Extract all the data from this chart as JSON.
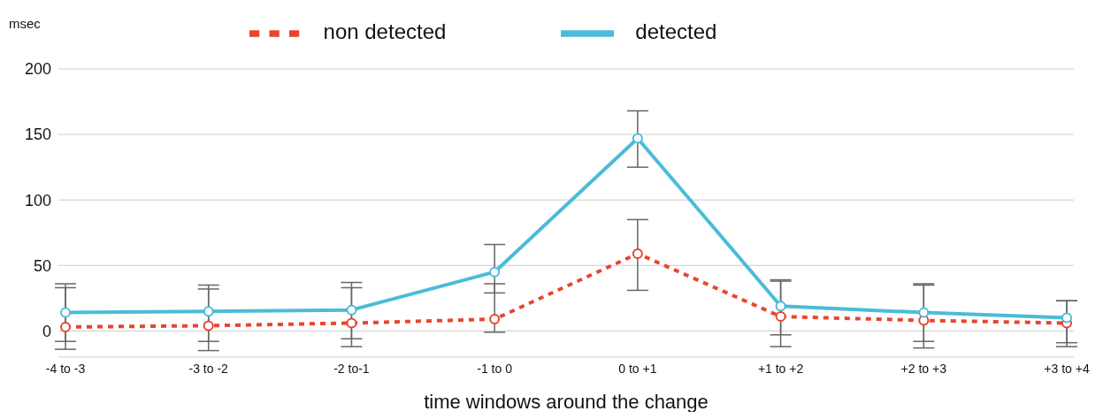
{
  "chart_data": {
    "type": "line",
    "ylabel": "msec",
    "xlabel": "time windows around the change",
    "categories": [
      "-4 to -3",
      "-3 to -2",
      "-2 to-1",
      "-1 to 0",
      "0 to +1",
      "+1 to +2",
      "+2 to +3",
      "+3 to +4"
    ],
    "series": [
      {
        "name": "non detected",
        "color": "#e8452f",
        "line_style": "dotted",
        "values": [
          3,
          4,
          6,
          9,
          59,
          11,
          8,
          6
        ],
        "errors": [
          [
            -14,
            33
          ],
          [
            -15,
            32
          ],
          [
            -12,
            33
          ],
          [
            -1,
            36
          ],
          [
            31,
            85
          ],
          [
            -12,
            38
          ],
          [
            -13,
            35
          ],
          [
            -12,
            23
          ]
        ]
      },
      {
        "name": "detected",
        "color": "#4bbcd8",
        "line_style": "solid",
        "values": [
          14,
          15,
          16,
          45,
          147,
          19,
          14,
          10
        ],
        "errors": [
          [
            -8,
            36
          ],
          [
            -8,
            35
          ],
          [
            -6,
            37
          ],
          [
            29,
            66
          ],
          [
            125,
            168
          ],
          [
            -3,
            39
          ],
          [
            -8,
            36
          ],
          [
            -9,
            23
          ]
        ]
      }
    ],
    "ylim": [
      -20,
      200
    ],
    "yticks": [
      0,
      50,
      100,
      150,
      200
    ],
    "grid": "y",
    "legend": "top",
    "marker": "circle"
  }
}
